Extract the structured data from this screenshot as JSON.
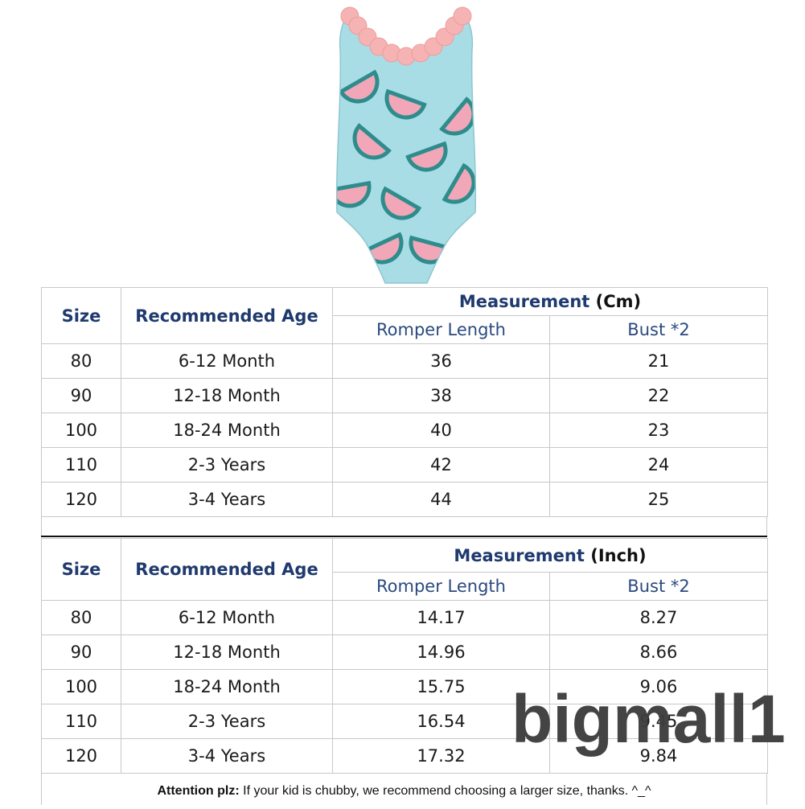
{
  "product": {
    "name": "watermelon-print-ruffle-swimsuit",
    "colors": {
      "fabric": "#a9dde6",
      "melon": "#f1a7b7",
      "rind": "#2f8c8c",
      "ruffle": "#f6b3b3"
    }
  },
  "table_cm": {
    "headers": {
      "size": "Size",
      "age": "Recommended Age",
      "measurement": "Measurement",
      "unit": "(Cm)",
      "length": "Romper Length",
      "bust": "Bust *2"
    },
    "rows": [
      {
        "size": "80",
        "age": "6-12 Month",
        "length": "36",
        "bust": "21"
      },
      {
        "size": "90",
        "age": "12-18 Month",
        "length": "38",
        "bust": "22"
      },
      {
        "size": "100",
        "age": "18-24 Month",
        "length": "40",
        "bust": "23"
      },
      {
        "size": "110",
        "age": "2-3 Years",
        "length": "42",
        "bust": "24"
      },
      {
        "size": "120",
        "age": "3-4 Years",
        "length": "44",
        "bust": "25"
      }
    ]
  },
  "table_inch": {
    "headers": {
      "size": "Size",
      "age": "Recommended Age",
      "measurement": "Measurement",
      "unit": "(Inch)",
      "length": "Romper Length",
      "bust": "Bust *2"
    },
    "rows": [
      {
        "size": "80",
        "age": "6-12 Month",
        "length": "14.17",
        "bust": "8.27"
      },
      {
        "size": "90",
        "age": "12-18 Month",
        "length": "14.96",
        "bust": "8.66"
      },
      {
        "size": "100",
        "age": "18-24 Month",
        "length": "15.75",
        "bust": "9.06"
      },
      {
        "size": "110",
        "age": "2-3 Years",
        "length": "16.54",
        "bust": "9.45"
      },
      {
        "size": "120",
        "age": "3-4 Years",
        "length": "17.32",
        "bust": "9.84"
      }
    ]
  },
  "note": {
    "label": "Attention plz:",
    "text": " If your kid is chubby, we recommend choosing a larger size, thanks. ^_^"
  },
  "watermark": "bigmall1"
}
